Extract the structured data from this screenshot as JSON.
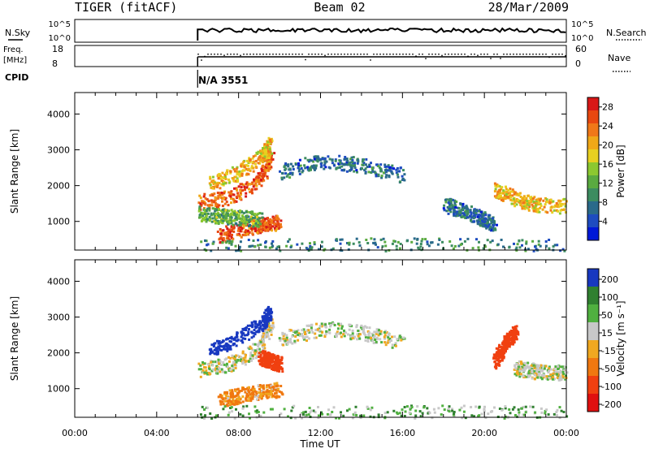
{
  "header": {
    "radar": "TIGER (fitACF)",
    "beam": "Beam 02",
    "date": "28/Mar/2009"
  },
  "strips": {
    "nsky": {
      "label": "N.Sky",
      "ticks": [
        "10^5",
        "10^0"
      ],
      "right_label": "N.Search",
      "right_ticks": [
        "10^5",
        "10^0"
      ]
    },
    "freq": {
      "label_line1": "Freq.",
      "label_line2": "[MHz]",
      "ticks": [
        "18",
        "8"
      ],
      "right_label": "Nave",
      "right_ticks": [
        "60",
        "0"
      ]
    },
    "cpid": {
      "label": "CPID",
      "value": "N/A 3551",
      "start_hour": 6
    }
  },
  "colors": {
    "power": [
      "#0018d8",
      "#1e4cc0",
      "#2a6a8a",
      "#3c8c60",
      "#5aaa40",
      "#8cc830",
      "#e8d020",
      "#f0a818",
      "#f07818",
      "#e84810",
      "#d81818"
    ],
    "velocity": [
      "#e01010",
      "#f04010",
      "#f07810",
      "#f0a820",
      "#c8c8c8",
      "#50b040",
      "#308030",
      "#1838c0"
    ]
  },
  "chart_data": [
    {
      "type": "heatmap",
      "title": "Power",
      "xlabel": "",
      "ylabel": "Slant Range [km]",
      "xlim": [
        0,
        24
      ],
      "ylim": [
        200,
        4600
      ],
      "y_ticks": [
        "1000",
        "2000",
        "3000",
        "4000"
      ],
      "colorbar": {
        "label": "Power [dB]",
        "ticks": [
          "4",
          "8",
          "12",
          "16",
          "20",
          "24",
          "28"
        ],
        "range": [
          0,
          30
        ]
      },
      "data_start_hour": 6,
      "features": [
        {
          "x": [
            6.0,
            7.5,
            9.0,
            9.6
          ],
          "y": [
            1550,
            1700,
            2150,
            2900
          ],
          "value": 26
        },
        {
          "x": [
            6.6,
            8.0,
            9.2,
            9.5
          ],
          "y": [
            2100,
            2400,
            2900,
            3150
          ],
          "value": 20
        },
        {
          "x": [
            7.0,
            8.2,
            9.2,
            10.0
          ],
          "y": [
            620,
            820,
            950,
            1000
          ],
          "value": 27
        },
        {
          "x": [
            6.0,
            7.5,
            9.0
          ],
          "y": [
            1250,
            1150,
            1080
          ],
          "value": 12
        },
        {
          "x": [
            10.0,
            12.0,
            14.0,
            16.0
          ],
          "y": [
            2400,
            2700,
            2600,
            2300
          ],
          "value": 6
        },
        {
          "x": [
            18.0,
            19.5,
            20.5
          ],
          "y": [
            1500,
            1200,
            900
          ],
          "value": 6
        },
        {
          "x": [
            20.5,
            21.5,
            22.5,
            24.0
          ],
          "y": [
            1900,
            1650,
            1500,
            1450
          ],
          "value": 20
        },
        {
          "x": [
            6.0,
            15.0,
            24.0
          ],
          "y": [
            300,
            350,
            320
          ],
          "value": 8
        }
      ]
    },
    {
      "type": "heatmap",
      "title": "Velocity",
      "xlabel": "Time UT",
      "ylabel": "Slant Range [km]",
      "xlim": [
        0,
        24
      ],
      "ylim": [
        200,
        4600
      ],
      "x_ticks": [
        "00:00",
        "04:00",
        "08:00",
        "12:00",
        "16:00",
        "20:00",
        "00:00"
      ],
      "y_ticks": [
        "1000",
        "2000",
        "3000",
        "4000"
      ],
      "colorbar": {
        "label": "Velocity [m s⁻¹]",
        "ticks": [
          "200",
          "100",
          "50",
          "15",
          "-15",
          "-50",
          "-100",
          "-200"
        ]
      },
      "features": [
        {
          "x": [
            6.0,
            7.5,
            9.0,
            9.6
          ],
          "y": [
            1550,
            1700,
            2150,
            2900
          ],
          "value": 0
        },
        {
          "x": [
            6.6,
            8.0,
            9.2,
            9.5
          ],
          "y": [
            2100,
            2450,
            2900,
            3150
          ],
          "value": 180
        },
        {
          "x": [
            7.0,
            8.2,
            9.2,
            10.0
          ],
          "y": [
            700,
            850,
            950,
            1000
          ],
          "value": -40
        },
        {
          "x": [
            9.0,
            10.0
          ],
          "y": [
            1900,
            1700
          ],
          "value": -120
        },
        {
          "x": [
            10.0,
            12.0,
            14.0,
            16.0
          ],
          "y": [
            2400,
            2700,
            2600,
            2300
          ],
          "value": 0
        },
        {
          "x": [
            20.5,
            21.0,
            21.5
          ],
          "y": [
            1800,
            2300,
            2600
          ],
          "value": -110
        },
        {
          "x": [
            21.5,
            22.5,
            24.0
          ],
          "y": [
            1600,
            1500,
            1450
          ],
          "value": 0
        },
        {
          "x": [
            6.0,
            15.0,
            24.0
          ],
          "y": [
            330,
            360,
            320
          ],
          "value": 25
        }
      ]
    }
  ]
}
